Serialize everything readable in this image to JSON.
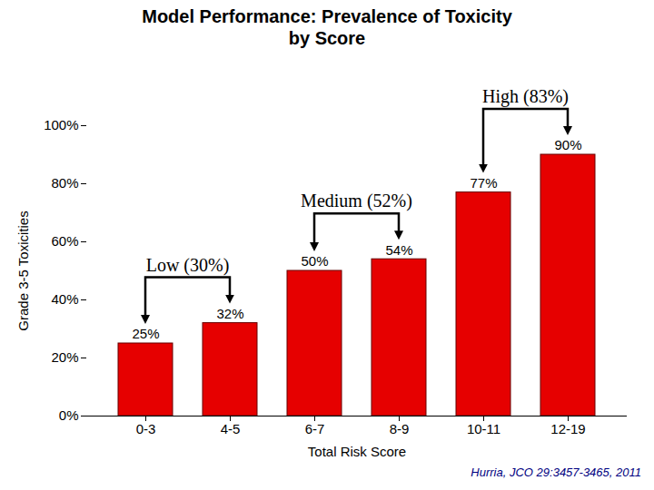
{
  "chart_data": {
    "type": "bar",
    "title": "Model Performance: Prevalence of Toxicity by Score",
    "x_label": "Total Risk Score",
    "y_label": "Grade 3-5 Toxicities",
    "categories": [
      "0-3",
      "4-5",
      "6-7",
      "8-9",
      "10-11",
      "12-19"
    ],
    "values": [
      25,
      32,
      50,
      54,
      77,
      90
    ],
    "value_labels": [
      "25%",
      "32%",
      "50%",
      "54%",
      "77%",
      "90%"
    ],
    "data_labels": true,
    "color": "#e60000",
    "ylim": [
      0,
      100
    ],
    "yticks": [
      {
        "value": 0,
        "label": "0%"
      },
      {
        "value": 20,
        "label": "20%"
      },
      {
        "value": 40,
        "label": "40%"
      },
      {
        "value": 60,
        "label": "60%"
      },
      {
        "value": 80,
        "label": "80%"
      },
      {
        "value": 100,
        "label": "100%"
      }
    ],
    "grid": false,
    "annotations": [
      {
        "text": "Low (30%)",
        "from": "0-3",
        "to": "4-5"
      },
      {
        "text": "Medium (52%)",
        "from": "6-7",
        "to": "8-9"
      },
      {
        "text": "High (83%)",
        "from": "10-11",
        "to": "12-19"
      }
    ],
    "source": "Hurria, JCO 29:3457-3465, 2011"
  }
}
